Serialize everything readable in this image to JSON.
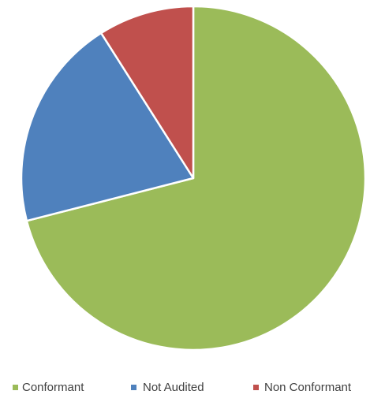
{
  "chart_data": {
    "type": "pie",
    "slices": [
      {
        "label": "Conformant",
        "value": 71,
        "color": "#9BBB59"
      },
      {
        "label": "Not Audited",
        "value": 20,
        "color": "#4F81BD"
      },
      {
        "label": "Non Conformant",
        "value": 9,
        "color": "#C0504D"
      }
    ],
    "start_angle_deg": 0,
    "direction": "clockwise",
    "legend_position": "bottom"
  }
}
